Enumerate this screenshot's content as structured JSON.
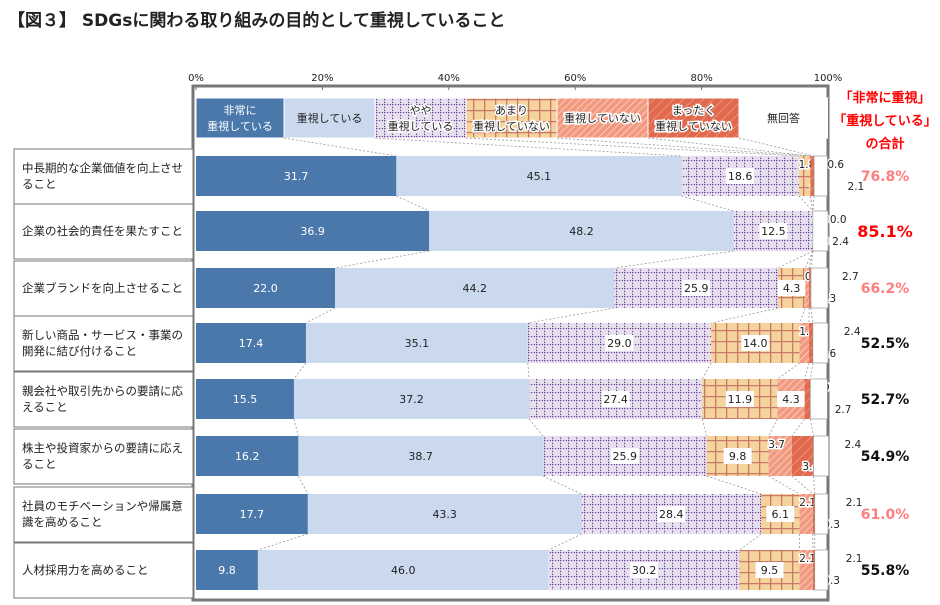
{
  "title": "【図３】 SDGsに関わる取り組みの目的として重視していること",
  "chart_data": {
    "type": "bar",
    "orientation": "horizontal-stacked-100",
    "xlim": [
      0,
      100
    ],
    "x_ticks": [
      "0%",
      "20%",
      "40%",
      "60%",
      "80%",
      "100%"
    ],
    "legend": [
      "非常に\n重視している",
      "重視している",
      "やや\n重視している",
      "あまり\n重視していない",
      "重視していない",
      "まったく\n重視していない",
      "無回答"
    ],
    "legend_placement": "top",
    "colors": [
      "#4a78ab",
      "#cad9ee",
      "#e6e0ee",
      "#f5d39c",
      "#f29a80",
      "#e0694e",
      "#ffffff"
    ],
    "categories": [
      "中長期的な企業価値を向上させること",
      "企業の社会的責任を果たすこと",
      "企業ブランドを向上させること",
      "新しい商品・サービス・事業の開発に結び付けること",
      "親会社や取引先からの要請に応えること",
      "株主や投資家からの要請に応えること",
      "社員のモチベーションや帰属意識を高めること",
      "人材採用力を高めること"
    ],
    "values": [
      [
        31.7,
        45.1,
        18.6,
        1.8,
        0.0,
        0.6,
        2.1
      ],
      [
        36.9,
        48.2,
        12.5,
        0.0,
        0.0,
        0.0,
        2.4
      ],
      [
        22.0,
        44.2,
        25.9,
        4.3,
        0.6,
        0.3,
        2.7
      ],
      [
        17.4,
        35.1,
        29.0,
        14.0,
        1.5,
        0.6,
        2.4
      ],
      [
        15.5,
        37.2,
        27.4,
        11.9,
        4.3,
        0.9,
        2.7
      ],
      [
        16.2,
        38.7,
        25.9,
        9.8,
        3.7,
        3.4,
        2.4
      ],
      [
        17.7,
        43.3,
        28.4,
        6.1,
        2.1,
        0.3,
        2.1
      ],
      [
        9.8,
        46.0,
        30.2,
        9.5,
        2.1,
        0.3,
        2.1
      ]
    ],
    "totals_header": [
      "「非常に重視」",
      "「重視している」",
      "の合計"
    ],
    "totals": [
      "76.8%",
      "85.1%",
      "66.2%",
      "52.5%",
      "52.7%",
      "54.9%",
      "61.0%",
      "55.8%"
    ],
    "total_colors": [
      "#ff7f7f",
      "#ff0000",
      "#ff7f7f",
      "#111111",
      "#111111",
      "#111111",
      "#ff7f7f",
      "#111111"
    ]
  }
}
